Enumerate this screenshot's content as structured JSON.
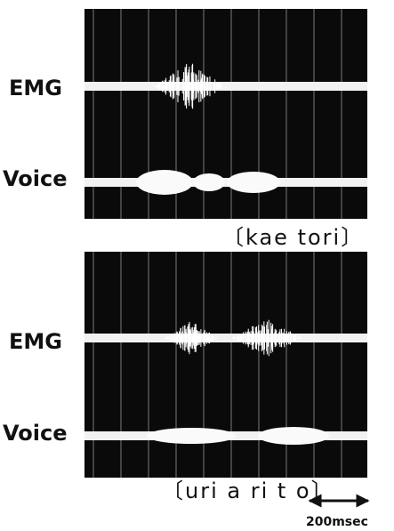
{
  "panels": [
    {
      "traces": [
        {
          "label": "EMG"
        },
        {
          "label": "Voice"
        }
      ],
      "caption": "〔kae tori〕"
    },
    {
      "traces": [
        {
          "label": "EMG"
        },
        {
          "label": "Voice"
        }
      ],
      "caption": "〔uri a ri t o〕"
    }
  ],
  "scale_bar": "200msec"
}
